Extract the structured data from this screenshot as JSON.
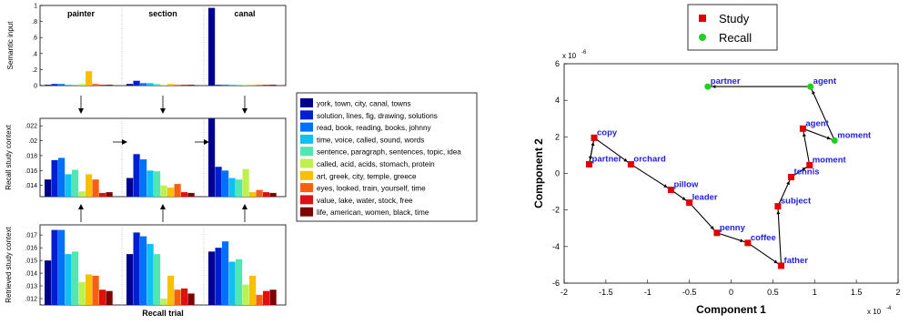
{
  "chart_data": [
    {
      "type": "bar",
      "ylabel": "Semantic input",
      "ylim": [
        0,
        1
      ],
      "yticks": [
        0,
        0.2,
        0.4,
        0.6,
        0.8,
        1
      ],
      "panels": [
        {
          "label": "painter",
          "values": [
            0.01,
            0.02,
            0.02,
            0.01,
            0.01,
            0.02,
            0.18,
            0.02,
            0.01,
            0.01
          ]
        },
        {
          "label": "section",
          "values": [
            0.02,
            0.06,
            0.03,
            0.03,
            0.02,
            0.01,
            0.02,
            0.01,
            0.01,
            0.01
          ]
        },
        {
          "label": "canal",
          "values": [
            0.97,
            0.01,
            0.01,
            0.01,
            0.01,
            0.01,
            0.01,
            0.01,
            0.01,
            0.01
          ]
        }
      ]
    },
    {
      "type": "bar",
      "ylabel": "Recall study context",
      "ylim": [
        0.0125,
        0.023
      ],
      "yticks": [
        0.014,
        0.016,
        0.018,
        0.02,
        0.022
      ],
      "panels": [
        {
          "values": [
            0.0148,
            0.0174,
            0.0177,
            0.0155,
            0.0161,
            0.0132,
            0.0155,
            0.0148,
            0.013,
            0.0131
          ]
        },
        {
          "values": [
            0.015,
            0.0182,
            0.0175,
            0.016,
            0.0159,
            0.014,
            0.0137,
            0.0142,
            0.0131,
            0.013
          ]
        },
        {
          "values": [
            0.023,
            0.0165,
            0.016,
            0.015,
            0.0148,
            0.0162,
            0.0131,
            0.0134,
            0.0131,
            0.013
          ]
        }
      ]
    },
    {
      "type": "bar",
      "ylabel": "Retrieved study context",
      "ylim": [
        0.0115,
        0.0178
      ],
      "yticks": [
        0.012,
        0.013,
        0.014,
        0.015,
        0.016,
        0.017
      ],
      "xlabel": "Recall trial",
      "panels": [
        {
          "values": [
            0.015,
            0.0174,
            0.0174,
            0.0155,
            0.0157,
            0.0133,
            0.0139,
            0.0138,
            0.0127,
            0.0126
          ]
        },
        {
          "values": [
            0.0155,
            0.0172,
            0.0169,
            0.0163,
            0.0155,
            0.012,
            0.0138,
            0.0127,
            0.0128,
            0.0124
          ]
        },
        {
          "values": [
            0.0157,
            0.016,
            0.0165,
            0.0149,
            0.0151,
            0.0131,
            0.0138,
            0.0123,
            0.0126,
            0.0127
          ]
        }
      ]
    },
    {
      "type": "legend",
      "entries": [
        {
          "label": "york, town, city, canal, towns",
          "color": "#00008f"
        },
        {
          "label": "solution, lines, fig, drawing, solutions",
          "color": "#0020d0"
        },
        {
          "label": "read, book, reading, books, johnny",
          "color": "#0070ff"
        },
        {
          "label": "time, voice, called, sound, words",
          "color": "#10c0f0"
        },
        {
          "label": "sentence, paragraph, sentences, topic, idea",
          "color": "#50e8b0"
        },
        {
          "label": "called, acid, acids, stomach, protein",
          "color": "#c0f050"
        },
        {
          "label": "art, greek, city, temple, greece",
          "color": "#f8c000"
        },
        {
          "label": "eyes, looked, train, yourself, time",
          "color": "#f86010"
        },
        {
          "label": "value, lake, water, stock, free",
          "color": "#e01010"
        },
        {
          "label": "life, american, women, black, time",
          "color": "#800000"
        }
      ]
    },
    {
      "type": "scatter",
      "xlabel": "Component 1",
      "ylabel": "Component 2",
      "xlim": [
        -2,
        2
      ],
      "ylim": [
        -6,
        6
      ],
      "xticks": [
        -2,
        -1.5,
        -1,
        -0.5,
        0,
        0.5,
        1,
        1.5,
        2
      ],
      "yticks": [
        -6,
        -4,
        -2,
        0,
        2,
        4,
        6
      ],
      "xexp": "x 10",
      "xexp_power": "-4",
      "yexp": "x 10",
      "yexp_power": "-6",
      "legend": [
        {
          "label": "Study",
          "color": "#e00000",
          "marker": "square"
        },
        {
          "label": "Recall",
          "color": "#20d020",
          "marker": "circle"
        }
      ],
      "points": [
        {
          "label": "copy",
          "x": -1.64,
          "y": 1.95,
          "marker": "square"
        },
        {
          "label": "partner",
          "x": -1.7,
          "y": 0.5,
          "marker": "square"
        },
        {
          "label": "orchard",
          "x": -1.2,
          "y": 0.5,
          "marker": "square"
        },
        {
          "label": "pillow",
          "x": -0.72,
          "y": -0.9,
          "marker": "square"
        },
        {
          "label": "leader",
          "x": -0.5,
          "y": -1.6,
          "marker": "square"
        },
        {
          "label": "penny",
          "x": -0.17,
          "y": -3.25,
          "marker": "square"
        },
        {
          "label": "coffee",
          "x": 0.2,
          "y": -3.8,
          "marker": "square"
        },
        {
          "label": "father",
          "x": 0.6,
          "y": -5.05,
          "marker": "square"
        },
        {
          "label": "subject",
          "x": 0.56,
          "y": -1.8,
          "marker": "square"
        },
        {
          "label": "tennis",
          "x": 0.72,
          "y": -0.2,
          "marker": "square"
        },
        {
          "label": "moment",
          "x": 0.94,
          "y": 0.45,
          "marker": "square"
        },
        {
          "label": "agent",
          "x": 0.86,
          "y": 2.45,
          "marker": "square"
        },
        {
          "label": "moment",
          "x": 1.24,
          "y": 1.8,
          "marker": "circle"
        },
        {
          "label": "agent",
          "x": 0.95,
          "y": 4.75,
          "marker": "circle"
        },
        {
          "label": "partner",
          "x": -0.28,
          "y": 4.75,
          "marker": "circle"
        }
      ],
      "path": [
        [
          -1.64,
          1.95
        ],
        [
          -1.7,
          0.5
        ],
        [
          -1.64,
          1.95
        ],
        [
          -1.2,
          0.5
        ],
        [
          -0.72,
          -0.9
        ],
        [
          -0.5,
          -1.6
        ],
        [
          -0.17,
          -3.25
        ],
        [
          0.2,
          -3.8
        ],
        [
          0.6,
          -5.05
        ],
        [
          0.56,
          -1.8
        ],
        [
          0.72,
          -0.2
        ],
        [
          0.94,
          0.45
        ],
        [
          0.86,
          2.45
        ],
        [
          1.24,
          1.8
        ],
        [
          0.95,
          4.75
        ],
        [
          -0.28,
          4.75
        ]
      ]
    }
  ]
}
